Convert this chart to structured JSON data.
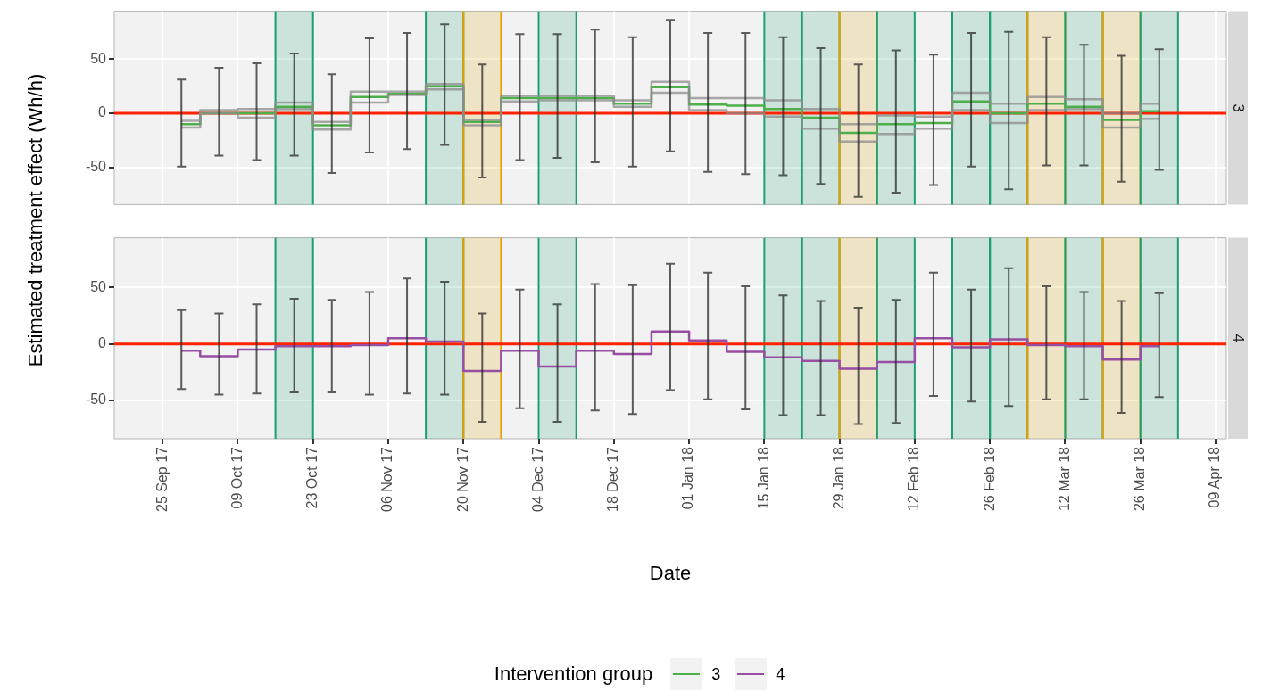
{
  "chart_data": [
    {
      "type": "step",
      "title": "3",
      "ylabel": "Estimated treatment effect (Wh/h)",
      "legend": "bottom",
      "grid": true,
      "tick_labels": "y",
      "x": [
        "2017-09-28T12:00",
        "2017-10-05T12:00",
        "2017-10-12T12:00",
        "2017-10-19T12:00",
        "2017-10-26T12:00",
        "2017-11-02T12:00",
        "2017-11-09T12:00",
        "2017-11-16T12:00",
        "2017-11-23T12:00",
        "2017-11-30T12:00",
        "2017-12-07T12:00",
        "2017-12-14T12:00",
        "2017-12-21T12:00",
        "2017-12-28T12:00",
        "2018-01-04T12:00",
        "2018-01-11T12:00",
        "2018-01-18T12:00",
        "2018-01-25T12:00",
        "2018-02-01T12:00",
        "2018-02-08T12:00",
        "2018-02-15T12:00",
        "2018-02-22T12:00",
        "2018-03-01T12:00",
        "2018-03-08T12:00",
        "2018-03-15T12:00",
        "2018-03-22T12:00",
        "2018-03-29T12:00"
      ],
      "xlim": [
        "2017-09-16",
        "2018-04-11"
      ],
      "xticks": [
        {
          "value": "2017-09-25",
          "label": null
        },
        {
          "value": "2017-10-09",
          "label": null
        },
        {
          "value": "2017-10-23",
          "label": null
        },
        {
          "value": "2017-11-06",
          "label": null
        },
        {
          "value": "2017-11-20",
          "label": null
        },
        {
          "value": "2017-12-04",
          "label": null
        },
        {
          "value": "2017-12-18",
          "label": null
        },
        {
          "value": "2018-01-01",
          "label": null
        },
        {
          "value": "2018-01-15",
          "label": null
        },
        {
          "value": "2018-01-29",
          "label": null
        },
        {
          "value": "2018-02-12",
          "label": null
        },
        {
          "value": "2018-02-26",
          "label": null
        },
        {
          "value": "2018-03-12",
          "label": null
        },
        {
          "value": "2018-03-26",
          "label": null
        },
        {
          "value": "2018-04-09",
          "label": null
        }
      ],
      "ylim": [
        -84,
        94
      ],
      "yticks": [
        -50,
        0,
        50
      ],
      "series": [
        {
          "color": "#8c8c8c",
          "values": [
            -7,
            3,
            4,
            10,
            -8,
            20,
            20,
            27,
            -6,
            16,
            16,
            16,
            12,
            29,
            14,
            14,
            12,
            4,
            -10,
            -2,
            -3,
            19,
            9,
            15,
            13,
            0,
            9
          ]
        },
        {
          "color": "#8c8c8c",
          "values": [
            -13,
            0,
            -4,
            4,
            -15,
            10,
            17,
            22,
            -11,
            11,
            12,
            12,
            6,
            19,
            3,
            0,
            -3,
            -14,
            -26,
            -19,
            -14,
            3,
            -9,
            3,
            4,
            -13,
            -5
          ]
        },
        {
          "name": "3",
          "color": "#4daf4a",
          "values": [
            -10,
            0,
            0,
            6,
            -11,
            15,
            18,
            25,
            -8,
            14,
            14,
            14,
            9,
            24,
            8,
            7,
            4,
            -4,
            -18,
            -10,
            -9,
            11,
            0,
            9,
            6,
            -6,
            2
          ],
          "errors": [
            [
              -49,
              31
            ],
            [
              -39,
              42
            ],
            [
              -43,
              46
            ],
            [
              -39,
              55
            ],
            [
              -55,
              36
            ],
            [
              -36,
              69
            ],
            [
              -33,
              74
            ],
            [
              -29,
              82
            ],
            [
              -59,
              45
            ],
            [
              -43,
              73
            ],
            [
              -41,
              73
            ],
            [
              -45,
              77
            ],
            [
              -49,
              70
            ],
            [
              -35,
              86
            ],
            [
              -54,
              74
            ],
            [
              -56,
              74
            ],
            [
              -57,
              70
            ],
            [
              -65,
              60
            ],
            [
              -77,
              45
            ],
            [
              -73,
              58
            ],
            [
              -66,
              54
            ],
            [
              -49,
              74
            ],
            [
              -70,
              75
            ],
            [
              -48,
              70
            ],
            [
              -48,
              63
            ],
            [
              -63,
              53
            ],
            [
              -52,
              59
            ]
          ]
        }
      ],
      "bands": [
        {
          "axis": "x",
          "from": "2017-10-16",
          "to": "2017-10-23",
          "color": "#1b9e77"
        },
        {
          "axis": "x",
          "from": "2017-11-13",
          "to": "2017-11-20",
          "color": "#1b9e77"
        },
        {
          "axis": "x",
          "from": "2017-11-20",
          "to": "2017-11-27",
          "color": "#e69f00"
        },
        {
          "axis": "x",
          "from": "2017-12-04",
          "to": "2017-12-11",
          "color": "#1b9e77"
        },
        {
          "axis": "x",
          "from": "2018-01-15",
          "to": "2018-01-22",
          "color": "#1b9e77"
        },
        {
          "axis": "x",
          "from": "2018-01-22",
          "to": "2018-01-29",
          "color": "#1b9e77"
        },
        {
          "axis": "x",
          "from": "2018-01-29",
          "to": "2018-02-05",
          "color": "#e69f00"
        },
        {
          "axis": "x",
          "from": "2018-02-05",
          "to": "2018-02-12",
          "color": "#1b9e77"
        },
        {
          "axis": "x",
          "from": "2018-02-19",
          "to": "2018-02-26",
          "color": "#1b9e77"
        },
        {
          "axis": "x",
          "from": "2018-02-26",
          "to": "2018-03-05",
          "color": "#1b9e77"
        },
        {
          "axis": "x",
          "from": "2018-03-05",
          "to": "2018-03-12",
          "color": "#e69f00"
        },
        {
          "axis": "x",
          "from": "2018-03-12",
          "to": "2018-03-19",
          "color": "#1b9e77"
        },
        {
          "axis": "x",
          "from": "2018-03-19",
          "to": "2018-03-26",
          "color": "#e69f00"
        },
        {
          "axis": "x",
          "from": "2018-03-26",
          "to": "2018-04-02",
          "color": "#1b9e77"
        }
      ],
      "ref_lines": [
        {
          "axis": "y",
          "value": 0,
          "color": "#ff2200"
        }
      ]
    },
    {
      "type": "step",
      "title": "4",
      "xlabel": "Date",
      "legend": "bottom",
      "legend_title": "Intervention group",
      "grid": true,
      "x": [
        "2017-09-28T12:00",
        "2017-10-05T12:00",
        "2017-10-12T12:00",
        "2017-10-19T12:00",
        "2017-10-26T12:00",
        "2017-11-02T12:00",
        "2017-11-09T12:00",
        "2017-11-16T12:00",
        "2017-11-23T12:00",
        "2017-11-30T12:00",
        "2017-12-07T12:00",
        "2017-12-14T12:00",
        "2017-12-21T12:00",
        "2017-12-28T12:00",
        "2018-01-04T12:00",
        "2018-01-11T12:00",
        "2018-01-18T12:00",
        "2018-01-25T12:00",
        "2018-02-01T12:00",
        "2018-02-08T12:00",
        "2018-02-15T12:00",
        "2018-02-22T12:00",
        "2018-03-01T12:00",
        "2018-03-08T12:00",
        "2018-03-15T12:00",
        "2018-03-22T12:00",
        "2018-03-29T12:00"
      ],
      "xlim": [
        "2017-09-16",
        "2018-04-11"
      ],
      "xticks": [
        {
          "value": "2017-09-25",
          "label": "25 Sep 17"
        },
        {
          "value": "2017-10-09",
          "label": "09 Oct 17"
        },
        {
          "value": "2017-10-23",
          "label": "23 Oct 17"
        },
        {
          "value": "2017-11-06",
          "label": "06 Nov 17"
        },
        {
          "value": "2017-11-20",
          "label": "20 Nov 17"
        },
        {
          "value": "2017-12-04",
          "label": "04 Dec 17"
        },
        {
          "value": "2017-12-18",
          "label": "18 Dec 17"
        },
        {
          "value": "2018-01-01",
          "label": "01 Jan 18"
        },
        {
          "value": "2018-01-15",
          "label": "15 Jan 18"
        },
        {
          "value": "2018-01-29",
          "label": "29 Jan 18"
        },
        {
          "value": "2018-02-12",
          "label": "12 Feb 18"
        },
        {
          "value": "2018-02-26",
          "label": "26 Feb 18"
        },
        {
          "value": "2018-03-12",
          "label": "12 Mar 18"
        },
        {
          "value": "2018-03-26",
          "label": "26 Mar 18"
        },
        {
          "value": "2018-04-09",
          "label": "09 Apr 18"
        }
      ],
      "ylim": [
        -84,
        94
      ],
      "yticks": [
        -50,
        0,
        50
      ],
      "series": [
        {
          "name": "4",
          "color": "#984ea3",
          "values": [
            -6,
            -11,
            -5,
            -2,
            -2,
            -1,
            5,
            2,
            -24,
            -6,
            -20,
            -6,
            -9,
            11,
            3,
            -7,
            -12,
            -15,
            -22,
            -16,
            5,
            -3,
            4,
            -1,
            -2,
            -14,
            -2
          ],
          "errors": [
            [
              -40,
              30
            ],
            [
              -45,
              27
            ],
            [
              -44,
              35
            ],
            [
              -43,
              40
            ],
            [
              -43,
              39
            ],
            [
              -45,
              46
            ],
            [
              -44,
              58
            ],
            [
              -45,
              55
            ],
            [
              -69,
              27
            ],
            [
              -57,
              48
            ],
            [
              -69,
              35
            ],
            [
              -59,
              53
            ],
            [
              -62,
              52
            ],
            [
              -41,
              71
            ],
            [
              -49,
              63
            ],
            [
              -58,
              51
            ],
            [
              -63,
              43
            ],
            [
              -63,
              38
            ],
            [
              -71,
              32
            ],
            [
              -70,
              39
            ],
            [
              -46,
              63
            ],
            [
              -51,
              48
            ],
            [
              -55,
              67
            ],
            [
              -49,
              51
            ],
            [
              -49,
              46
            ],
            [
              -61,
              38
            ],
            [
              -47,
              45
            ]
          ]
        }
      ],
      "bands": [
        {
          "axis": "x",
          "from": "2017-10-16",
          "to": "2017-10-23",
          "color": "#1b9e77"
        },
        {
          "axis": "x",
          "from": "2017-11-13",
          "to": "2017-11-20",
          "color": "#1b9e77"
        },
        {
          "axis": "x",
          "from": "2017-11-20",
          "to": "2017-11-27",
          "color": "#e69f00"
        },
        {
          "axis": "x",
          "from": "2017-12-04",
          "to": "2017-12-11",
          "color": "#1b9e77"
        },
        {
          "axis": "x",
          "from": "2018-01-15",
          "to": "2018-01-22",
          "color": "#1b9e77"
        },
        {
          "axis": "x",
          "from": "2018-01-22",
          "to": "2018-01-29",
          "color": "#1b9e77"
        },
        {
          "axis": "x",
          "from": "2018-01-29",
          "to": "2018-02-05",
          "color": "#e69f00"
        },
        {
          "axis": "x",
          "from": "2018-02-05",
          "to": "2018-02-12",
          "color": "#1b9e77"
        },
        {
          "axis": "x",
          "from": "2018-02-19",
          "to": "2018-02-26",
          "color": "#1b9e77"
        },
        {
          "axis": "x",
          "from": "2018-02-26",
          "to": "2018-03-05",
          "color": "#1b9e77"
        },
        {
          "axis": "x",
          "from": "2018-03-05",
          "to": "2018-03-12",
          "color": "#e69f00"
        },
        {
          "axis": "x",
          "from": "2018-03-12",
          "to": "2018-03-19",
          "color": "#1b9e77"
        },
        {
          "axis": "x",
          "from": "2018-03-19",
          "to": "2018-03-26",
          "color": "#e69f00"
        },
        {
          "axis": "x",
          "from": "2018-03-26",
          "to": "2018-04-02",
          "color": "#1b9e77"
        }
      ],
      "ref_lines": [
        {
          "axis": "y",
          "value": 0,
          "color": "#ff2200"
        }
      ]
    }
  ]
}
